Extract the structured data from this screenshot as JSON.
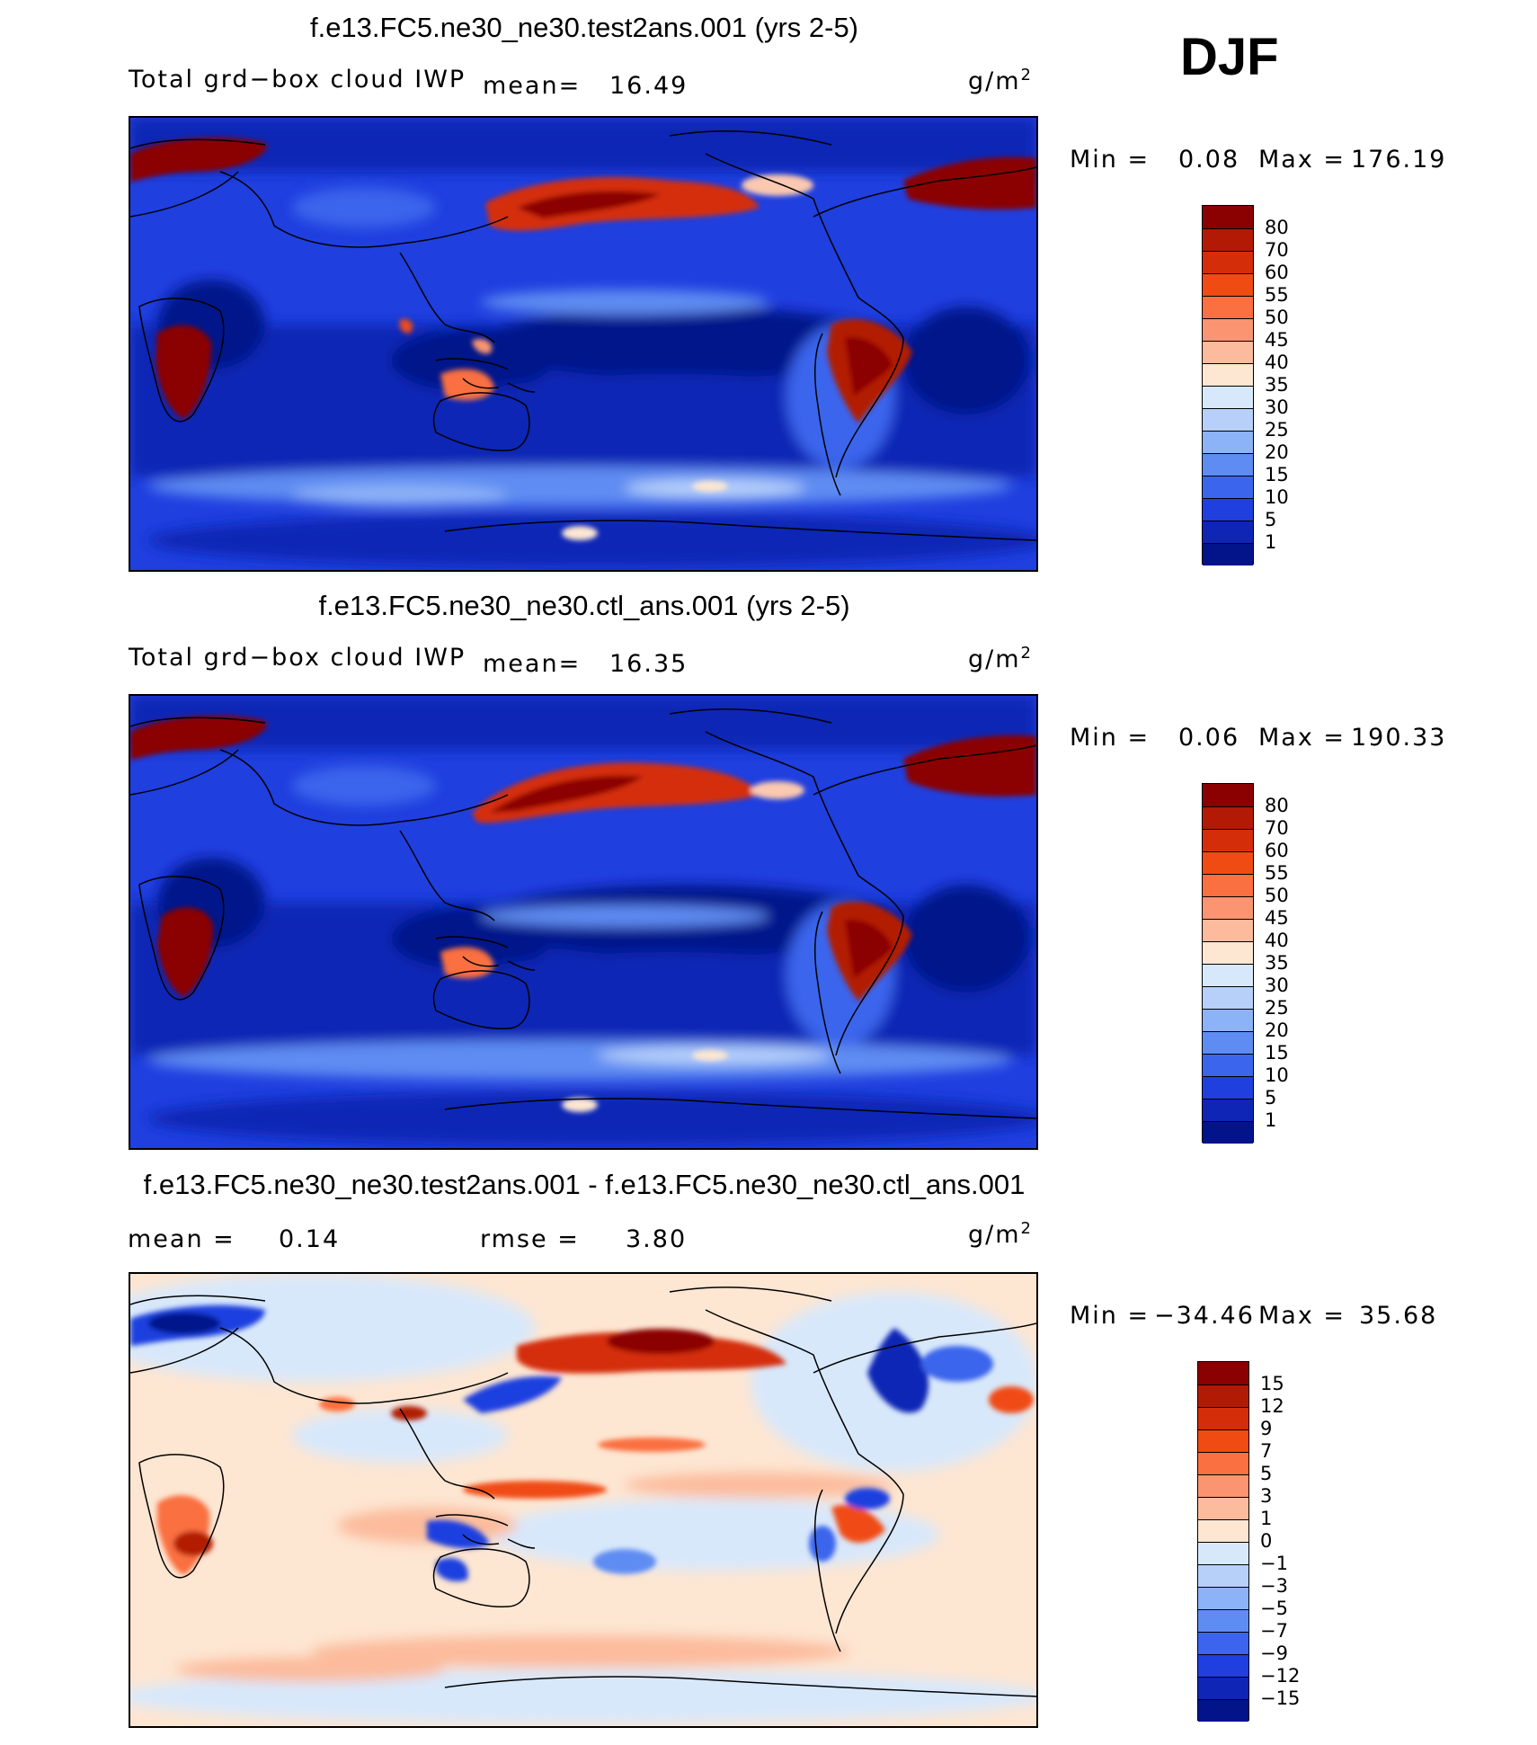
{
  "header": {
    "season": "DJF"
  },
  "chart_data": [
    {
      "type": "heatmap",
      "title": "f.e13.FC5.ne30_ne30.test2ans.001 (yrs 2-5)",
      "variable": "Total grd−box cloud IWP",
      "mean_label": "mean=",
      "mean_value": "16.49",
      "units_base": "g/m",
      "units_exp": "2",
      "min_label": "Min  =",
      "min_value": "0.08",
      "max_label": "Max  =",
      "max_value": "176.19",
      "colorbar": {
        "levels": [
          "80",
          "70",
          "60",
          "55",
          "50",
          "45",
          "40",
          "35",
          "30",
          "25",
          "20",
          "15",
          "10",
          "5",
          "1"
        ],
        "colors": [
          "#8b0000",
          "#b21a05",
          "#d42d0a",
          "#f04b12",
          "#fa7040",
          "#fb9470",
          "#fcbb9c",
          "#fde6d2",
          "#d8e8fb",
          "#b6d0fa",
          "#8cb2f7",
          "#5f8cf2",
          "#3a65ec",
          "#1f3fdf",
          "#0e25b5",
          "#03138a"
        ]
      }
    },
    {
      "type": "heatmap",
      "title": "f.e13.FC5.ne30_ne30.ctl_ans.001 (yrs 2-5)",
      "variable": "Total grd−box cloud IWP",
      "mean_label": "mean=",
      "mean_value": "16.35",
      "units_base": "g/m",
      "units_exp": "2",
      "min_label": "Min  =",
      "min_value": "0.06",
      "max_label": "Max  =",
      "max_value": "190.33",
      "colorbar": {
        "levels": [
          "80",
          "70",
          "60",
          "55",
          "50",
          "45",
          "40",
          "35",
          "30",
          "25",
          "20",
          "15",
          "10",
          "5",
          "1"
        ],
        "colors": [
          "#8b0000",
          "#b21a05",
          "#d42d0a",
          "#f04b12",
          "#fa7040",
          "#fb9470",
          "#fcbb9c",
          "#fde6d2",
          "#d8e8fb",
          "#b6d0fa",
          "#8cb2f7",
          "#5f8cf2",
          "#3a65ec",
          "#1f3fdf",
          "#0e25b5",
          "#03138a"
        ]
      }
    },
    {
      "type": "heatmap",
      "title": "f.e13.FC5.ne30_ne30.test2ans.001 - f.e13.FC5.ne30_ne30.ctl_ans.001",
      "mean_label": "mean  =",
      "mean_value": "0.14",
      "rmse_label": "rmse  =",
      "rmse_value": "3.80",
      "units_base": "g/m",
      "units_exp": "2",
      "min_label": "Min  =",
      "min_value": "−34.46",
      "max_label": "Max  =",
      "max_value": "35.68",
      "colorbar": {
        "levels": [
          "15",
          "12",
          "9",
          "7",
          "5",
          "3",
          "1",
          "0",
          "−1",
          "−3",
          "−5",
          "−7",
          "−9",
          "−12",
          "−15"
        ],
        "colors": [
          "#8b0000",
          "#b21a05",
          "#d42d0a",
          "#f04b12",
          "#fa7040",
          "#fb9470",
          "#fcbb9c",
          "#fde6d2",
          "#d8e8fb",
          "#b6d0fa",
          "#8cb2f7",
          "#5f8cf2",
          "#3a65ec",
          "#1f3fdf",
          "#0e25b5",
          "#03138a"
        ]
      }
    }
  ]
}
